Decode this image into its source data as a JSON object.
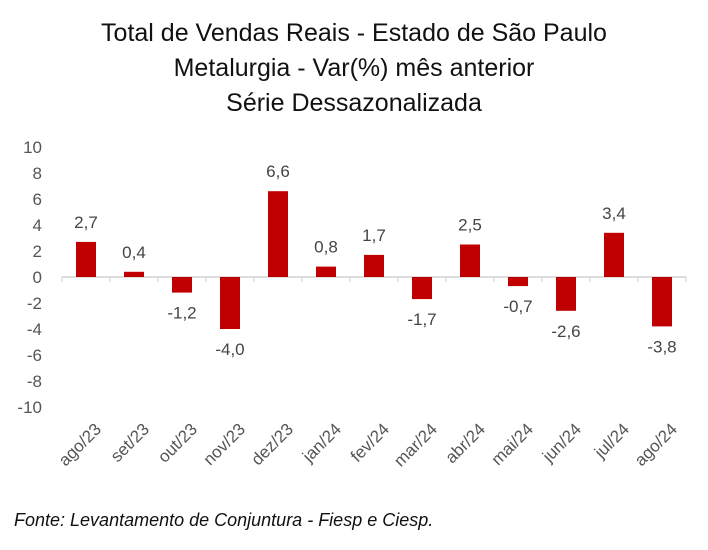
{
  "title": {
    "line1": "Total de Vendas Reais - Estado de São Paulo",
    "line2": "Metalurgia - Var(%) mês anterior",
    "line3": "Série Dessazonalizada"
  },
  "source": "Fonte: Levantamento de Conjuntura - Fiesp e Ciesp.",
  "chart_data": {
    "type": "bar",
    "title": "Total de Vendas Reais - Estado de São Paulo / Metalurgia - Var(%) mês anterior / Série Dessazonalizada",
    "xlabel": "",
    "ylabel": "",
    "categories": [
      "ago/23",
      "set/23",
      "out/23",
      "nov/23",
      "dez/23",
      "jan/24",
      "fev/24",
      "mar/24",
      "abr/24",
      "mai/24",
      "jun/24",
      "jul/24",
      "ago/24"
    ],
    "values": [
      2.7,
      0.4,
      -1.2,
      -4.0,
      6.6,
      0.8,
      1.7,
      -1.7,
      2.5,
      -0.7,
      -2.6,
      3.4,
      -3.8
    ],
    "value_labels": [
      "2,7",
      "0,4",
      "-1,2",
      "-4,0",
      "6,6",
      "0,8",
      "1,7",
      "-1,7",
      "2,5",
      "-0,7",
      "-2,6",
      "3,4",
      "-3,8"
    ],
    "yticks": [
      10,
      8,
      6,
      4,
      2,
      0,
      -2,
      -4,
      -6,
      -8,
      -10
    ],
    "ytick_labels": [
      "10",
      "8",
      "6",
      "4",
      "2",
      "0",
      "-2",
      "-4",
      "-6",
      "-8",
      "-10"
    ],
    "ylim": [
      -10,
      10
    ],
    "grid": false,
    "legend": "none",
    "bar_color": "#C00000"
  }
}
